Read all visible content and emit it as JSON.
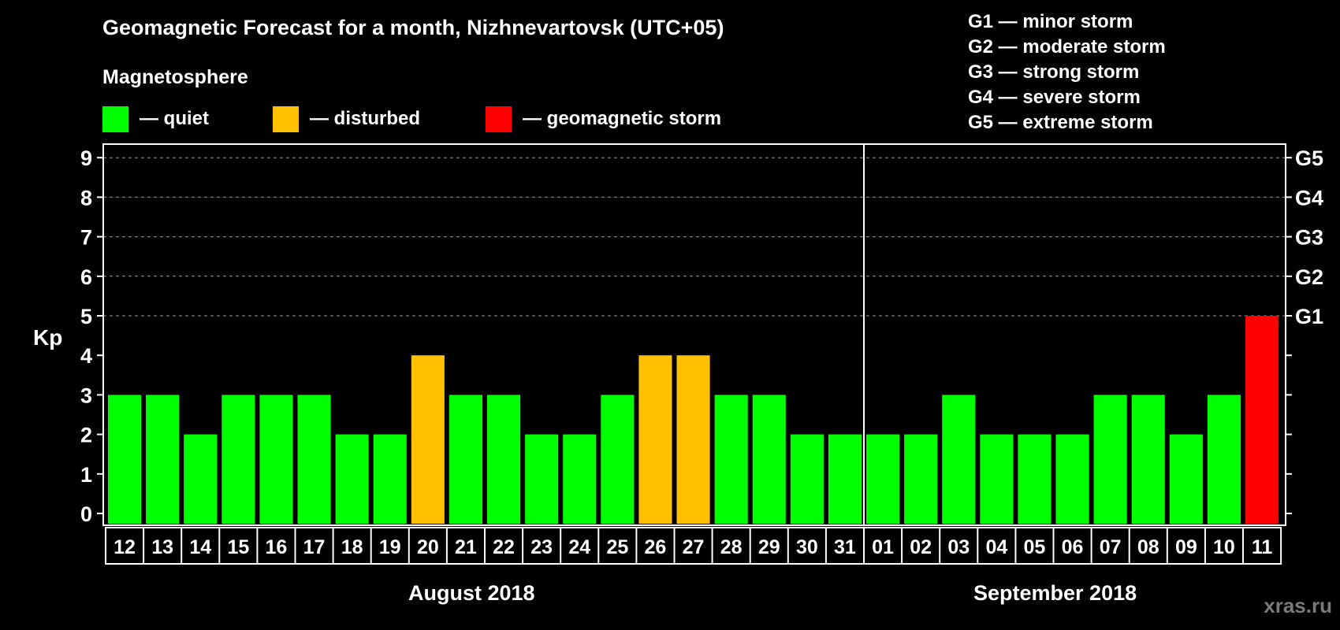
{
  "header": {
    "title": "Geomagnetic Forecast for a month, Nizhnevartovsk (UTC+05)",
    "subtitle": "Magnetosphere"
  },
  "legend": [
    {
      "label": "— quiet",
      "color": "#00ff00"
    },
    {
      "label": "— disturbed",
      "color": "#ffc000"
    },
    {
      "label": "— geomagnetic storm",
      "color": "#ff0000"
    }
  ],
  "storm_scale": [
    "G1 — minor storm",
    "G2 — moderate storm",
    "G3 — strong storm",
    "G4 — severe storm",
    "G5 — extreme storm"
  ],
  "months": {
    "left": "August 2018",
    "right": "September 2018"
  },
  "watermark": "xras.ru",
  "chart_data": {
    "type": "bar",
    "title": "Geomagnetic Forecast for a month, Nizhnevartovsk (UTC+05)",
    "xlabel": "",
    "ylabel": "Kp",
    "ylim": [
      0,
      9
    ],
    "yticks": [
      0,
      1,
      2,
      3,
      4,
      5,
      6,
      7,
      8,
      9
    ],
    "right_axis_labels": {
      "5": "G1",
      "6": "G2",
      "7": "G3",
      "8": "G4",
      "9": "G5"
    },
    "grid": "dashed horizontal at Kp 5-9",
    "categories": [
      "12",
      "13",
      "14",
      "15",
      "16",
      "17",
      "18",
      "19",
      "20",
      "21",
      "22",
      "23",
      "24",
      "25",
      "26",
      "27",
      "28",
      "29",
      "30",
      "31",
      "01",
      "02",
      "03",
      "04",
      "05",
      "06",
      "07",
      "08",
      "09",
      "10",
      "11"
    ],
    "category_months": [
      "August 2018",
      "August 2018",
      "August 2018",
      "August 2018",
      "August 2018",
      "August 2018",
      "August 2018",
      "August 2018",
      "August 2018",
      "August 2018",
      "August 2018",
      "August 2018",
      "August 2018",
      "August 2018",
      "August 2018",
      "August 2018",
      "August 2018",
      "August 2018",
      "August 2018",
      "August 2018",
      "September 2018",
      "September 2018",
      "September 2018",
      "September 2018",
      "September 2018",
      "September 2018",
      "September 2018",
      "September 2018",
      "September 2018",
      "September 2018",
      "September 2018"
    ],
    "values": [
      3,
      3,
      2,
      3,
      3,
      3,
      2,
      2,
      4,
      3,
      3,
      2,
      2,
      3,
      4,
      4,
      3,
      3,
      2,
      2,
      2,
      2,
      3,
      2,
      2,
      2,
      3,
      3,
      2,
      3,
      5
    ],
    "status": [
      "quiet",
      "quiet",
      "quiet",
      "quiet",
      "quiet",
      "quiet",
      "quiet",
      "quiet",
      "disturbed",
      "quiet",
      "quiet",
      "quiet",
      "quiet",
      "quiet",
      "disturbed",
      "disturbed",
      "quiet",
      "quiet",
      "quiet",
      "quiet",
      "quiet",
      "quiet",
      "quiet",
      "quiet",
      "quiet",
      "quiet",
      "quiet",
      "quiet",
      "quiet",
      "quiet",
      "storm"
    ],
    "colors": {
      "quiet": "#00ff00",
      "disturbed": "#ffc000",
      "storm": "#ff0000"
    },
    "legend": [
      "quiet",
      "disturbed",
      "geomagnetic storm"
    ],
    "legend_position": "top"
  }
}
